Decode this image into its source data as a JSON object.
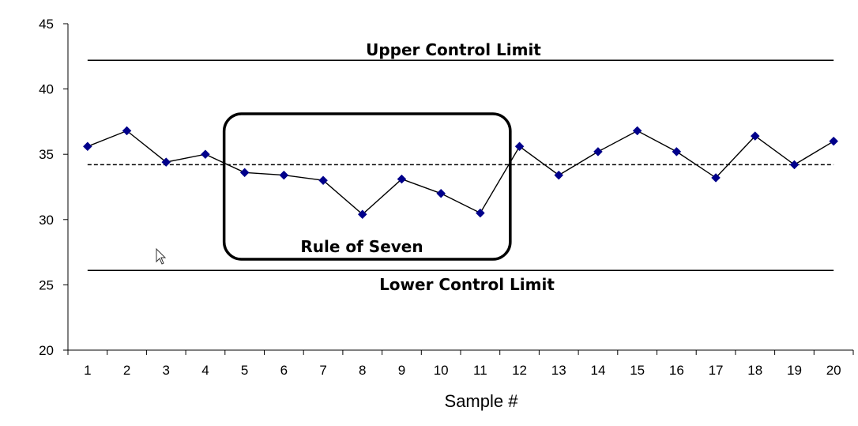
{
  "chart_data": {
    "type": "line",
    "x": [
      1,
      2,
      3,
      4,
      5,
      6,
      7,
      8,
      9,
      10,
      11,
      12,
      13,
      14,
      15,
      16,
      17,
      18,
      19,
      20
    ],
    "series": [
      {
        "values": [
          35.6,
          36.8,
          34.4,
          35.0,
          33.6,
          33.4,
          33.0,
          30.4,
          33.1,
          32.0,
          30.5,
          35.6,
          33.4,
          35.2,
          36.8,
          35.2,
          33.2,
          36.4,
          34.2,
          36.0
        ],
        "color": "#00008b",
        "marker": "diamond"
      }
    ],
    "center_line": 34.2,
    "upper_control_limit": 42.2,
    "lower_control_limit": 26.1,
    "annotations": {
      "ucl_label": "Upper Control Limit",
      "lcl_label": "Lower Control Limit",
      "box_label": "Rule of Seven",
      "box_range": [
        5,
        11
      ]
    },
    "xlabel": "Sample #",
    "ylabel": "",
    "ylim": [
      20,
      45
    ],
    "y_ticks": [
      20,
      25,
      30,
      35,
      40,
      45
    ],
    "x_tick_labels": [
      "1",
      "2",
      "3",
      "4",
      "5",
      "6",
      "7",
      "8",
      "9",
      "10",
      "11",
      "12",
      "13",
      "14",
      "15",
      "16",
      "17",
      "18",
      "19",
      "20"
    ],
    "grid": false,
    "legend": "none",
    "line_color": "#000000"
  }
}
